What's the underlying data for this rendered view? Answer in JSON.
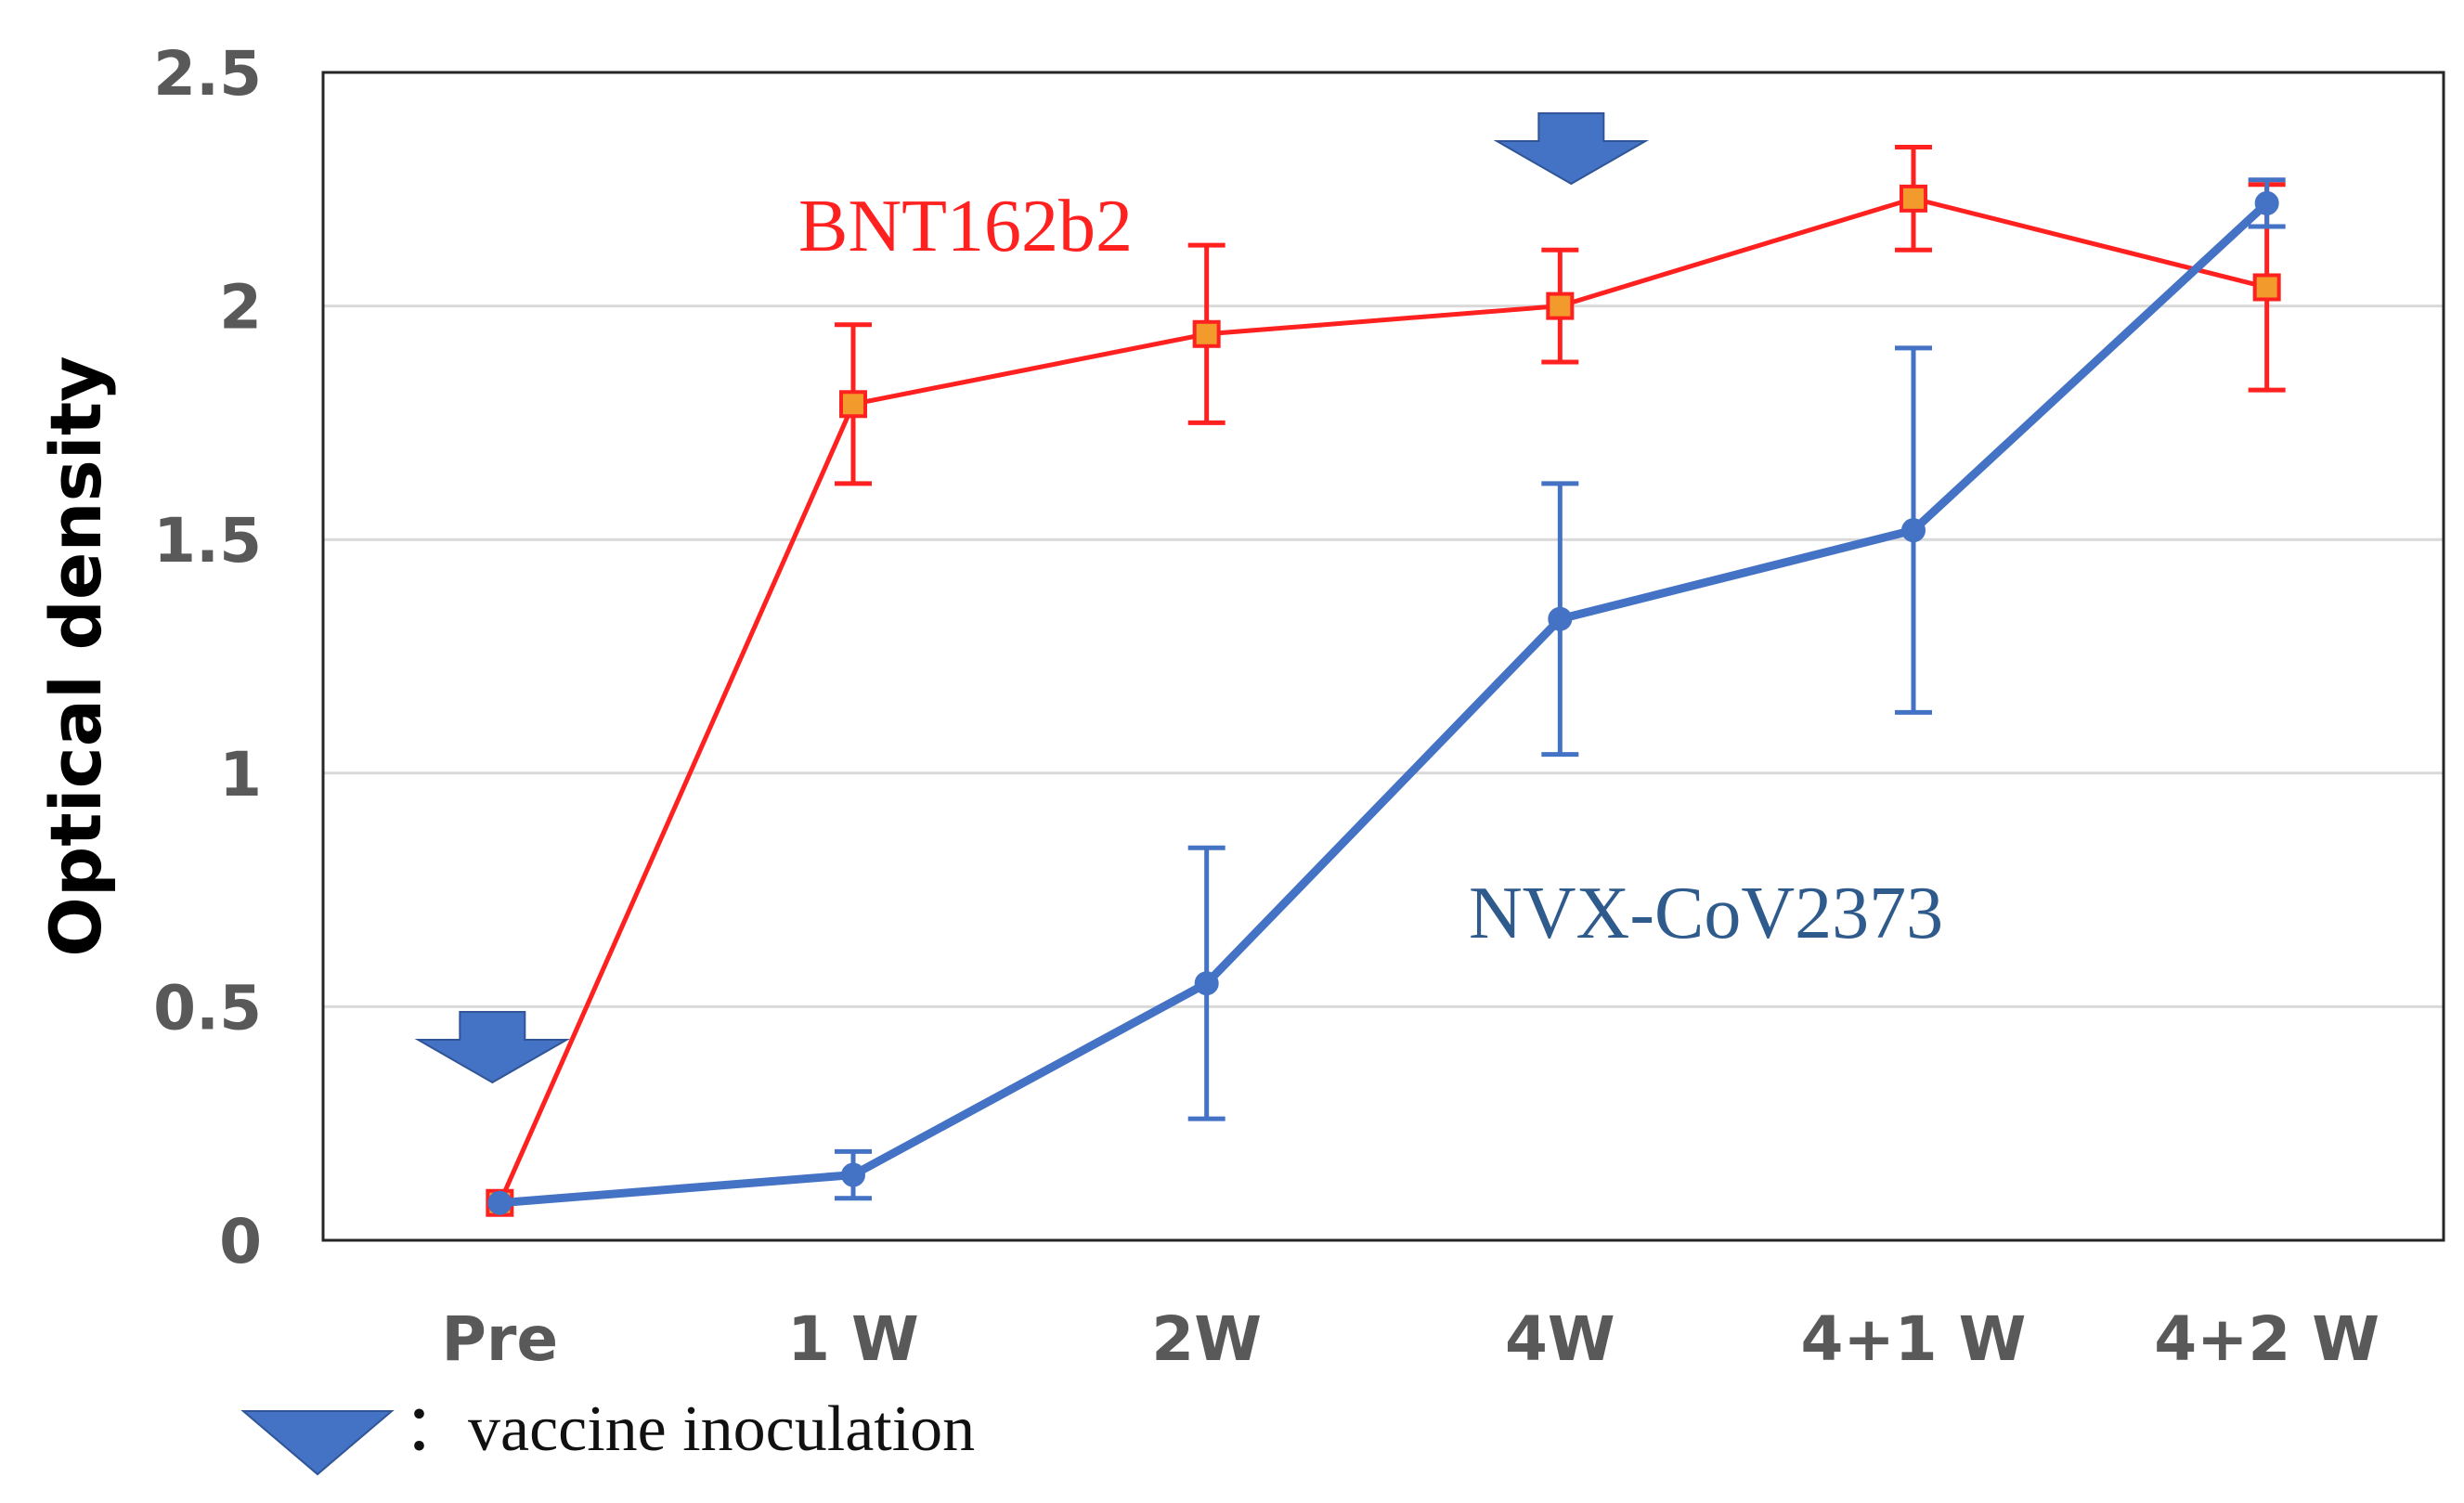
{
  "chart_data": {
    "type": "line",
    "title": "",
    "xlabel": "",
    "ylabel": "Optical density",
    "categories": [
      "Pre",
      "1 W",
      "2W",
      "4W",
      "4+1 W",
      "4+2 W"
    ],
    "ylim": [
      0,
      2.5
    ],
    "yticks": [
      "0",
      "0.5",
      "1",
      "1.5",
      "2",
      "2.5"
    ],
    "grid": true,
    "series": [
      {
        "name": "BNT162b2",
        "color": "#ff2020",
        "marker_fill": "#f39a2c",
        "marker": "square",
        "values": [
          0.08,
          1.79,
          1.94,
          2.0,
          2.23,
          2.04
        ],
        "error": [
          0.0,
          0.17,
          0.19,
          0.12,
          0.11,
          0.22
        ]
      },
      {
        "name": "NVX-CoV2373",
        "color": "#4472c4",
        "marker_fill": "#4472c4",
        "marker": "circle",
        "values": [
          0.08,
          0.14,
          0.55,
          1.33,
          1.52,
          2.22
        ],
        "error": [
          0.0,
          0.05,
          0.29,
          0.29,
          0.39,
          0.05
        ]
      }
    ],
    "annotations": {
      "vaccine_inoculation_at": [
        "Pre",
        "4W"
      ],
      "legend_text": "：vaccine inoculation",
      "arrow_color": "#4472c4"
    }
  }
}
